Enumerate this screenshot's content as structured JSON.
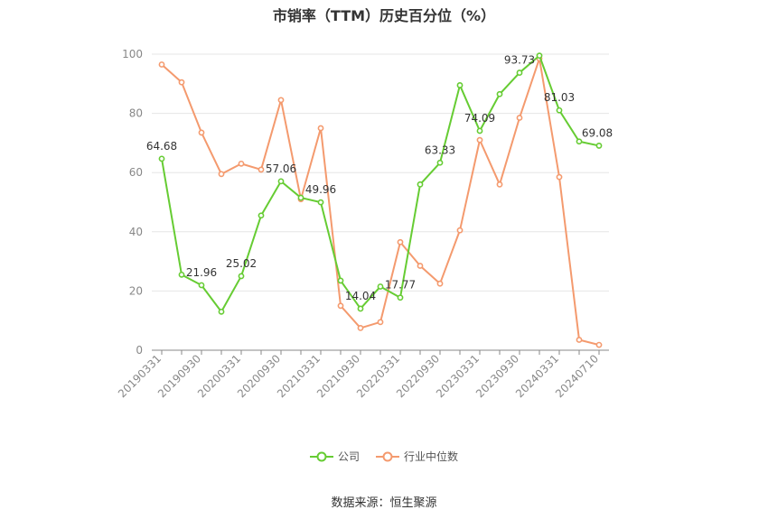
{
  "chart_data": {
    "type": "line",
    "title": "市销率（TTM）历史百分位（%）",
    "xlabel": "",
    "ylabel": "",
    "ylim": [
      0,
      100
    ],
    "yticks": [
      "0",
      "20",
      "40",
      "60",
      "80",
      "100"
    ],
    "grid": true,
    "legend_position": "bottom",
    "x_tick_labels": [
      "20190331",
      "20190930",
      "20200331",
      "20200930",
      "20210331",
      "20210930",
      "20220331",
      "20220930",
      "20230331",
      "20230930",
      "20240331",
      "20240710"
    ],
    "series": [
      {
        "name": "公司",
        "color": "#66cc33",
        "values": [
          64.68,
          25.5,
          21.96,
          13.0,
          25.02,
          45.5,
          57.06,
          51.5,
          49.96,
          23.5,
          14.04,
          21.5,
          17.77,
          56.0,
          63.33,
          89.5,
          74.09,
          86.5,
          93.73,
          99.5,
          81.03,
          70.5,
          69.08
        ],
        "labels": [
          "64.68",
          "",
          "21.96",
          "",
          "25.02",
          "",
          "57.06",
          "",
          "49.96",
          "",
          "14.04",
          "",
          "17.77",
          "",
          "63.33",
          "",
          "74.09",
          "",
          "93.73",
          "",
          "81.03",
          "",
          "69.08"
        ]
      },
      {
        "name": "行业中位数",
        "color": "#f49a6e",
        "values": [
          96.5,
          90.5,
          73.5,
          59.5,
          63.0,
          61.0,
          84.5,
          51.0,
          75.0,
          15.0,
          7.5,
          9.5,
          36.5,
          28.5,
          22.5,
          40.5,
          71.0,
          56.0,
          78.5,
          98.5,
          58.5,
          3.5,
          1.8
        ]
      }
    ]
  },
  "source": "数据来源：恒生聚源"
}
